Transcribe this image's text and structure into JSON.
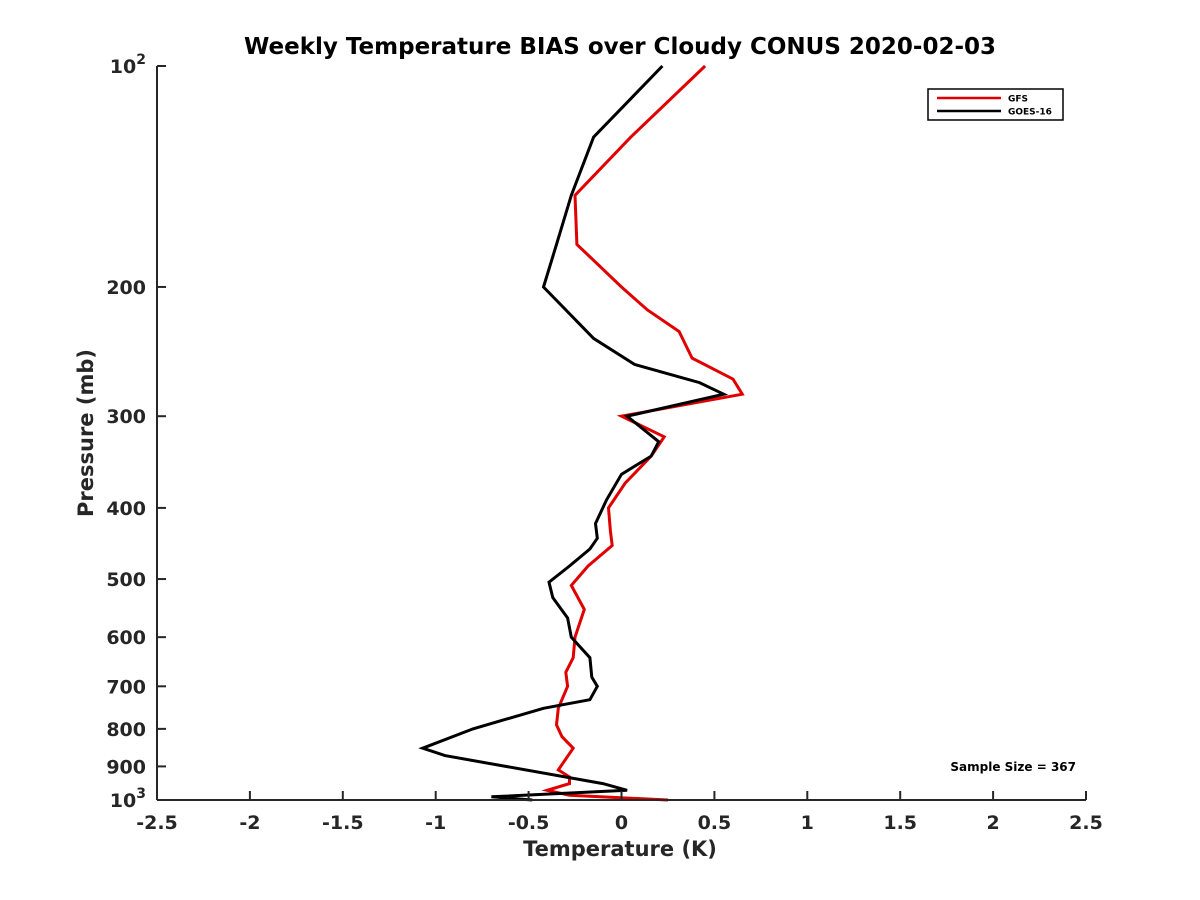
{
  "chart_data": {
    "type": "line",
    "title": "Weekly Temperature BIAS over Cloudy CONUS 2020-02-03",
    "xlabel": "Temperature (K)",
    "ylabel": "Pressure (mb)",
    "xlim": [
      -2.5,
      2.5
    ],
    "ylim": [
      100,
      1000
    ],
    "yscale": "log",
    "yreversed": true,
    "x_ticks": [
      -2.5,
      -2,
      -1.5,
      -1,
      -0.5,
      0,
      0.5,
      1,
      1.5,
      2,
      2.5
    ],
    "x_tick_labels": [
      "-2.5",
      "-2",
      "-1.5",
      "-1",
      "-0.5",
      "0",
      "0.5",
      "1",
      "1.5",
      "2",
      "2.5"
    ],
    "y_ticks": [
      200,
      300,
      400,
      500,
      600,
      700,
      800,
      900
    ],
    "y_tick_labels": [
      "200",
      "300",
      "400",
      "500",
      "600",
      "700",
      "800",
      "900"
    ],
    "y_top_label": {
      "base": "10",
      "exp": "2"
    },
    "y_bottom_label": {
      "base": "10",
      "exp": "3"
    },
    "legend_position": "top-right",
    "annotation": "Sample Size = 367",
    "series": [
      {
        "name": "GFS",
        "color": "#e00000",
        "points": [
          [
            0.45,
            100
          ],
          [
            0.05,
            125
          ],
          [
            -0.25,
            150
          ],
          [
            -0.24,
            175
          ],
          [
            0.0,
            200
          ],
          [
            0.14,
            215
          ],
          [
            0.31,
            230
          ],
          [
            0.38,
            250
          ],
          [
            0.6,
            267
          ],
          [
            0.65,
            280
          ],
          [
            0.0,
            300
          ],
          [
            0.23,
            320
          ],
          [
            0.16,
            340
          ],
          [
            0.02,
            370
          ],
          [
            -0.07,
            400
          ],
          [
            -0.06,
            430
          ],
          [
            -0.05,
            450
          ],
          [
            -0.18,
            480
          ],
          [
            -0.27,
            510
          ],
          [
            -0.2,
            550
          ],
          [
            -0.25,
            600
          ],
          [
            -0.26,
            640
          ],
          [
            -0.3,
            670
          ],
          [
            -0.29,
            700
          ],
          [
            -0.34,
            750
          ],
          [
            -0.35,
            790
          ],
          [
            -0.32,
            820
          ],
          [
            -0.26,
            850
          ],
          [
            -0.34,
            910
          ],
          [
            -0.28,
            930
          ],
          [
            -0.28,
            950
          ],
          [
            -0.4,
            970
          ],
          [
            -0.28,
            985
          ],
          [
            0.25,
            1000
          ]
        ]
      },
      {
        "name": "GOES-16",
        "color": "#000000",
        "points": [
          [
            0.22,
            100
          ],
          [
            -0.15,
            125
          ],
          [
            -0.27,
            150
          ],
          [
            -0.35,
            175
          ],
          [
            -0.42,
            200
          ],
          [
            -0.15,
            235
          ],
          [
            0.07,
            255
          ],
          [
            0.42,
            270
          ],
          [
            0.55,
            280
          ],
          [
            0.03,
            300
          ],
          [
            0.2,
            325
          ],
          [
            0.16,
            340
          ],
          [
            0.0,
            360
          ],
          [
            -0.08,
            390
          ],
          [
            -0.14,
            420
          ],
          [
            -0.13,
            440
          ],
          [
            -0.17,
            455
          ],
          [
            -0.28,
            480
          ],
          [
            -0.39,
            505
          ],
          [
            -0.37,
            530
          ],
          [
            -0.29,
            565
          ],
          [
            -0.27,
            600
          ],
          [
            -0.17,
            640
          ],
          [
            -0.16,
            680
          ],
          [
            -0.13,
            700
          ],
          [
            -0.17,
            730
          ],
          [
            -0.42,
            750
          ],
          [
            -0.8,
            800
          ],
          [
            -1.07,
            850
          ],
          [
            -0.95,
            870
          ],
          [
            -0.1,
            950
          ],
          [
            0.03,
            970
          ],
          [
            -0.7,
            990
          ],
          [
            -0.48,
            1000
          ]
        ]
      }
    ]
  }
}
